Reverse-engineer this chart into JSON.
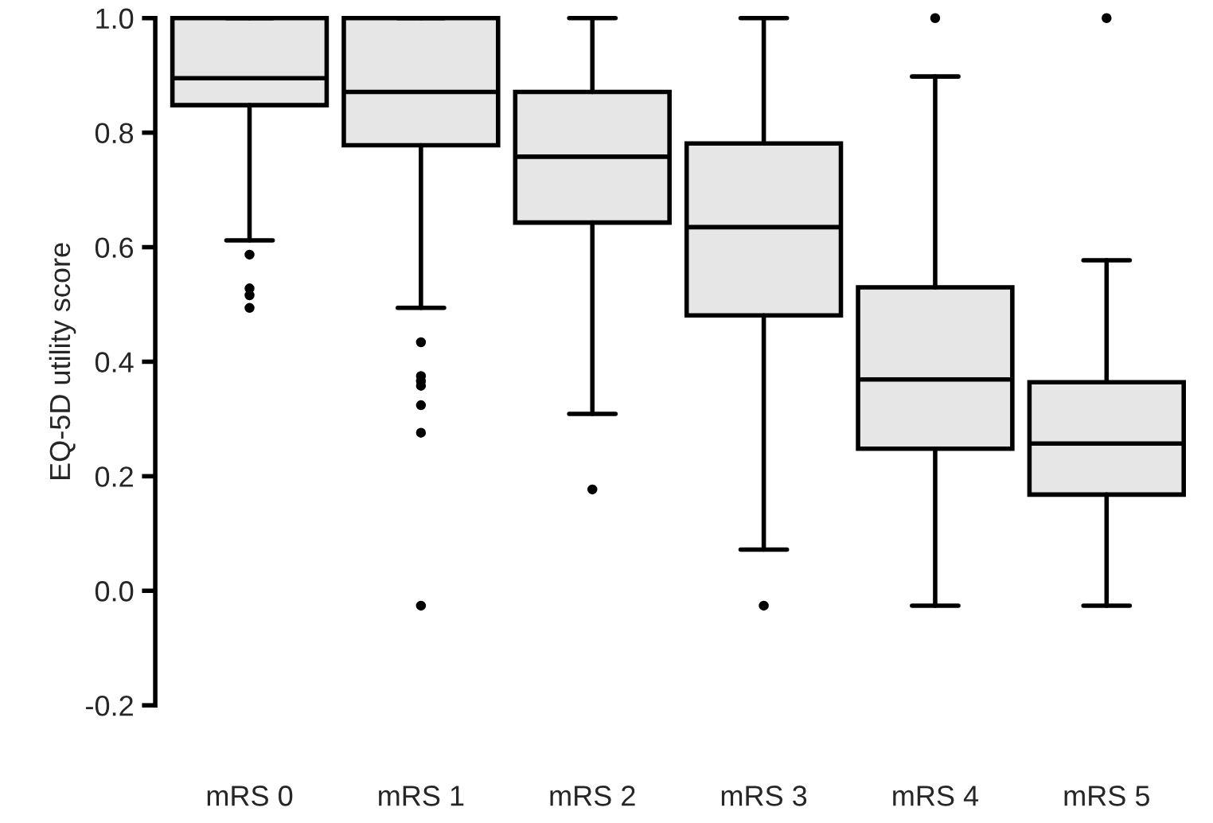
{
  "chart_data": {
    "type": "box",
    "ylabel": "EQ-5D utility score",
    "categories": [
      "mRS 0",
      "mRS 1",
      "mRS 2",
      "mRS 3",
      "mRS 4",
      "mRS 5"
    ],
    "boxes": [
      {
        "low": 0.612,
        "q1": 0.848,
        "median": 0.895,
        "q3": 1.0,
        "high": 1.0,
        "outliers": [
          0.587,
          0.528,
          0.516,
          0.494
        ]
      },
      {
        "low": 0.494,
        "q1": 0.778,
        "median": 0.871,
        "q3": 1.0,
        "high": 1.0,
        "outliers": [
          0.434,
          0.375,
          0.366,
          0.358,
          0.324,
          0.276,
          -0.026
        ]
      },
      {
        "low": 0.309,
        "q1": 0.643,
        "median": 0.758,
        "q3": 0.871,
        "high": 1.0,
        "outliers": [
          0.177
        ]
      },
      {
        "low": 0.072,
        "q1": 0.481,
        "median": 0.635,
        "q3": 0.781,
        "high": 1.0,
        "outliers": [
          -0.026
        ]
      },
      {
        "low": -0.026,
        "q1": 0.248,
        "median": 0.369,
        "q3": 0.53,
        "high": 0.898,
        "outliers": [
          1.0
        ]
      },
      {
        "low": -0.026,
        "q1": 0.168,
        "median": 0.257,
        "q3": 0.364,
        "high": 0.577,
        "outliers": [
          1.0
        ]
      }
    ],
    "color": "#e6e6e6",
    "ylim": [
      -0.2,
      1.0
    ],
    "yticks": [
      {
        "value": -0.2,
        "label": "-0.2"
      },
      {
        "value": 0.0,
        "label": "0.0"
      },
      {
        "value": 0.2,
        "label": "0.2"
      },
      {
        "value": 0.4,
        "label": "0.4"
      },
      {
        "value": 0.6,
        "label": "0.6"
      },
      {
        "value": 0.8,
        "label": "0.8"
      },
      {
        "value": 1.0,
        "label": "1.0"
      }
    ],
    "grid": false
  }
}
